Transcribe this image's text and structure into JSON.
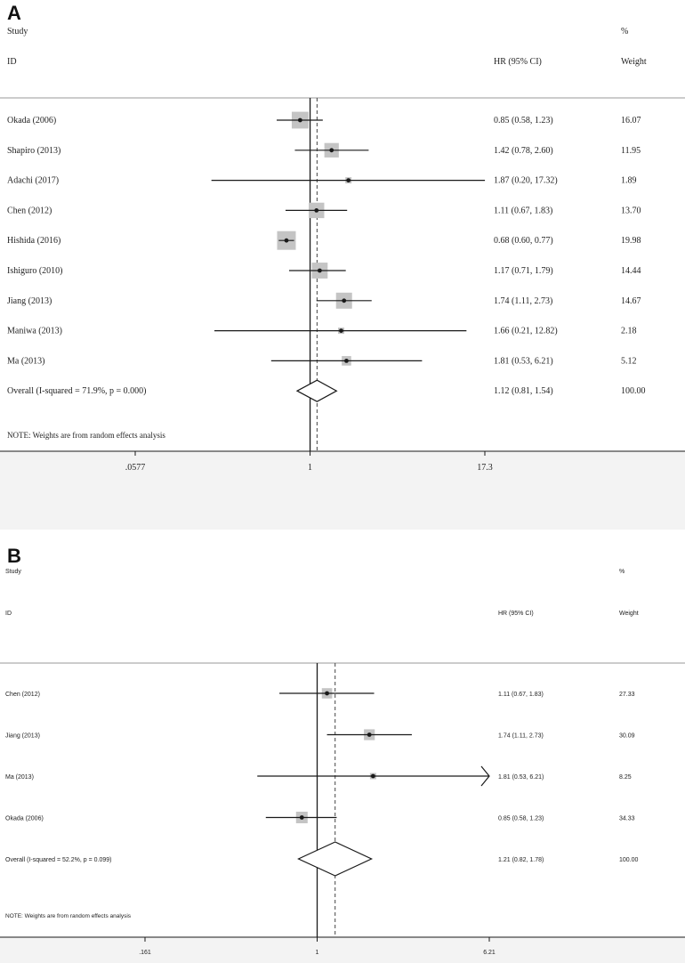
{
  "chart_data": [
    {
      "type": "forest",
      "panel_label": "A",
      "header": {
        "study": "Study",
        "id": "ID",
        "hr": "HR (95% CI)",
        "pct": "%",
        "weight": "Weight"
      },
      "x_scale": "log",
      "null_value": 1,
      "overall_value": 1.12,
      "xlim": [
        0.0577,
        17.3
      ],
      "ticks": [
        {
          "value": 0.0577,
          "label": ".0577"
        },
        {
          "value": 1,
          "label": "1"
        },
        {
          "value": 17.3,
          "label": "17.3"
        }
      ],
      "studies": [
        {
          "label": "Okada (2006)",
          "hr": 0.85,
          "lo": 0.58,
          "hi": 1.23,
          "ci_text": "0.85 (0.58, 1.23)",
          "weight": "16.07"
        },
        {
          "label": "Shapiro (2013)",
          "hr": 1.42,
          "lo": 0.78,
          "hi": 2.6,
          "ci_text": "1.42 (0.78, 2.60)",
          "weight": "11.95"
        },
        {
          "label": "Adachi  (2017)",
          "hr": 1.87,
          "lo": 0.2,
          "hi": 17.32,
          "ci_text": "1.87 (0.20, 17.32)",
          "weight": "1.89"
        },
        {
          "label": "Chen (2012)",
          "hr": 1.11,
          "lo": 0.67,
          "hi": 1.83,
          "ci_text": "1.11 (0.67, 1.83)",
          "weight": "13.70"
        },
        {
          "label": "Hishida (2016)",
          "hr": 0.68,
          "lo": 0.6,
          "hi": 0.77,
          "ci_text": "0.68 (0.60, 0.77)",
          "weight": "19.98"
        },
        {
          "label": "Ishiguro (2010)",
          "hr": 1.17,
          "lo": 0.71,
          "hi": 1.79,
          "ci_text": "1.17 (0.71, 1.79)",
          "weight": "14.44"
        },
        {
          "label": "Jiang (2013)",
          "hr": 1.74,
          "lo": 1.11,
          "hi": 2.73,
          "ci_text": "1.74 (1.11, 2.73)",
          "weight": "14.67"
        },
        {
          "label": "Maniwa (2013)",
          "hr": 1.66,
          "lo": 0.21,
          "hi": 12.82,
          "ci_text": "1.66 (0.21, 12.82)",
          "weight": "2.18"
        },
        {
          "label": "Ma (2013)",
          "hr": 1.81,
          "lo": 0.53,
          "hi": 6.21,
          "ci_text": "1.81 (0.53, 6.21)",
          "weight": "5.12"
        }
      ],
      "overall": {
        "label": "Overall  (I-squared = 71.9%, p = 0.000)",
        "hr": 1.12,
        "lo": 0.81,
        "hi": 1.54,
        "ci_text": "1.12 (0.81, 1.54)",
        "weight": "100.00"
      },
      "note": "NOTE: Weights are from random effects analysis"
    },
    {
      "type": "forest",
      "panel_label": "B",
      "header": {
        "study": "Study",
        "id": "ID",
        "hr": "HR (95% CI)",
        "pct": "%",
        "weight": "Weight"
      },
      "x_scale": "log",
      "null_value": 1,
      "overall_value": 1.21,
      "xlim": [
        0.161,
        6.21
      ],
      "ticks": [
        {
          "value": 0.161,
          "label": ".161"
        },
        {
          "value": 1,
          "label": "1"
        },
        {
          "value": 6.21,
          "label": "6.21"
        }
      ],
      "studies": [
        {
          "label": "Chen (2012)",
          "hr": 1.11,
          "lo": 0.67,
          "hi": 1.83,
          "ci_text": "1.11 (0.67, 1.83)",
          "weight": "27.33"
        },
        {
          "label": "Jiang (2013)",
          "hr": 1.74,
          "lo": 1.11,
          "hi": 2.73,
          "ci_text": "1.74 (1.11, 2.73)",
          "weight": "30.09"
        },
        {
          "label": "Ma (2013)",
          "hr": 1.81,
          "lo": 0.53,
          "hi": 6.21,
          "ci_text": "1.81 (0.53, 6.21)",
          "weight": "8.25",
          "arrow": true
        },
        {
          "label": "Okada (2006)",
          "hr": 0.85,
          "lo": 0.58,
          "hi": 1.23,
          "ci_text": "0.85 (0.58, 1.23)",
          "weight": "34.33"
        }
      ],
      "overall": {
        "label": "Overall  (I-squared = 52.2%, p = 0.099)",
        "hr": 1.21,
        "lo": 0.82,
        "hi": 1.78,
        "ci_text": "1.21 (0.82, 1.78)",
        "weight": "100.00"
      },
      "note": "NOTE: Weights are from random effects analysis"
    }
  ],
  "colors": {
    "background": "#ffffff",
    "band": "#f3f3f3",
    "box": "#c4c4c4",
    "line": "#1a1a1a",
    "text": "#222222"
  }
}
